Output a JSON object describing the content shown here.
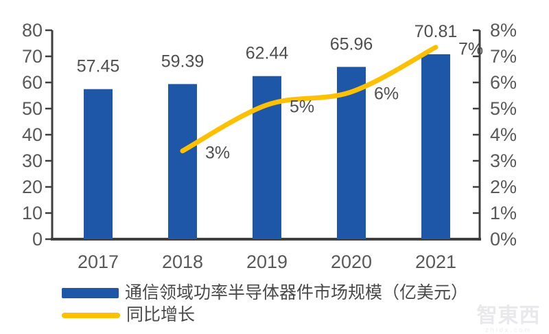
{
  "chart_data": {
    "type": "bar",
    "subtype": "bar-line-combo",
    "categories": [
      "2017",
      "2018",
      "2019",
      "2020",
      "2021"
    ],
    "series": [
      {
        "name": "通信领域功率半导体器件市场规模（亿美元）",
        "type": "bar",
        "axis": "left",
        "color": "#1E56A8",
        "values": [
          57.45,
          59.39,
          62.44,
          65.96,
          70.81
        ],
        "value_labels": [
          "57.45",
          "59.39",
          "62.44",
          "65.96",
          "70.81"
        ]
      },
      {
        "name": "同比增长",
        "type": "line",
        "axis": "right",
        "color": "#FFC000",
        "values": [
          null,
          3.38,
          5.14,
          5.64,
          7.35
        ],
        "value_labels": [
          null,
          "3%",
          "5%",
          "6%",
          "7%"
        ]
      }
    ],
    "left_axis": {
      "min": 0,
      "max": 80,
      "step": 10,
      "tick_labels": [
        "0",
        "10",
        "20",
        "30",
        "40",
        "50",
        "60",
        "70",
        "80"
      ]
    },
    "right_axis": {
      "min": 0,
      "max": 8,
      "step": 1,
      "tick_labels": [
        "0%",
        "1%",
        "2%",
        "3%",
        "4%",
        "5%",
        "6%",
        "7%",
        "8%"
      ]
    },
    "grid": false,
    "title": "",
    "legend_position": "bottom-left"
  },
  "legend": {
    "items": [
      {
        "label": "通信领域功率半导体器件市场规模（亿美元）",
        "swatch": "bar",
        "color": "#1E56A8"
      },
      {
        "label": "同比增长",
        "swatch": "line",
        "color": "#FFC000"
      }
    ]
  },
  "watermark": {
    "text": "智東西",
    "subtext": "zhidx.com"
  },
  "colors": {
    "bar": "#1E56A8",
    "line": "#FFC000",
    "axis": "#3F3F3F",
    "tick_label": "#595959",
    "value_label": "#4F4F4F"
  }
}
